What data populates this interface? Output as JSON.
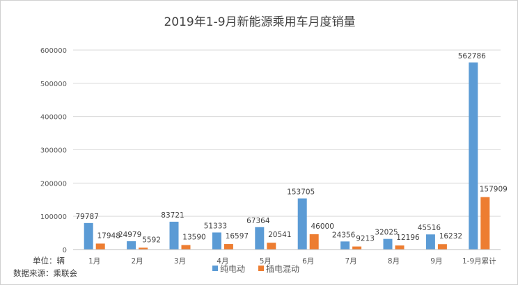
{
  "chart_data": {
    "type": "bar",
    "title": "2019年1-9月新能源乘用车月度销量",
    "categories": [
      "1月",
      "2月",
      "3月",
      "4月",
      "5月",
      "6月",
      "7月",
      "8月",
      "9月",
      "1-9月累计"
    ],
    "series": [
      {
        "name": "纯电动",
        "color": "#5B9BD5",
        "values": [
          79787,
          24979,
          83721,
          51333,
          67364,
          153705,
          24356,
          32025,
          45516,
          562786
        ]
      },
      {
        "name": "插电混动",
        "color": "#ED7D31",
        "values": [
          17948,
          5592,
          13590,
          16597,
          20541,
          46000,
          9213,
          12196,
          16232,
          157909
        ]
      }
    ],
    "yticks": [
      "0",
      "100000",
      "200000",
      "300000",
      "400000",
      "500000",
      "600000"
    ],
    "ylim": [
      0,
      600000
    ],
    "grid": true,
    "legend": "bottom",
    "unit_note": "单位：辆",
    "source_note": "数据来源：乘联会"
  }
}
